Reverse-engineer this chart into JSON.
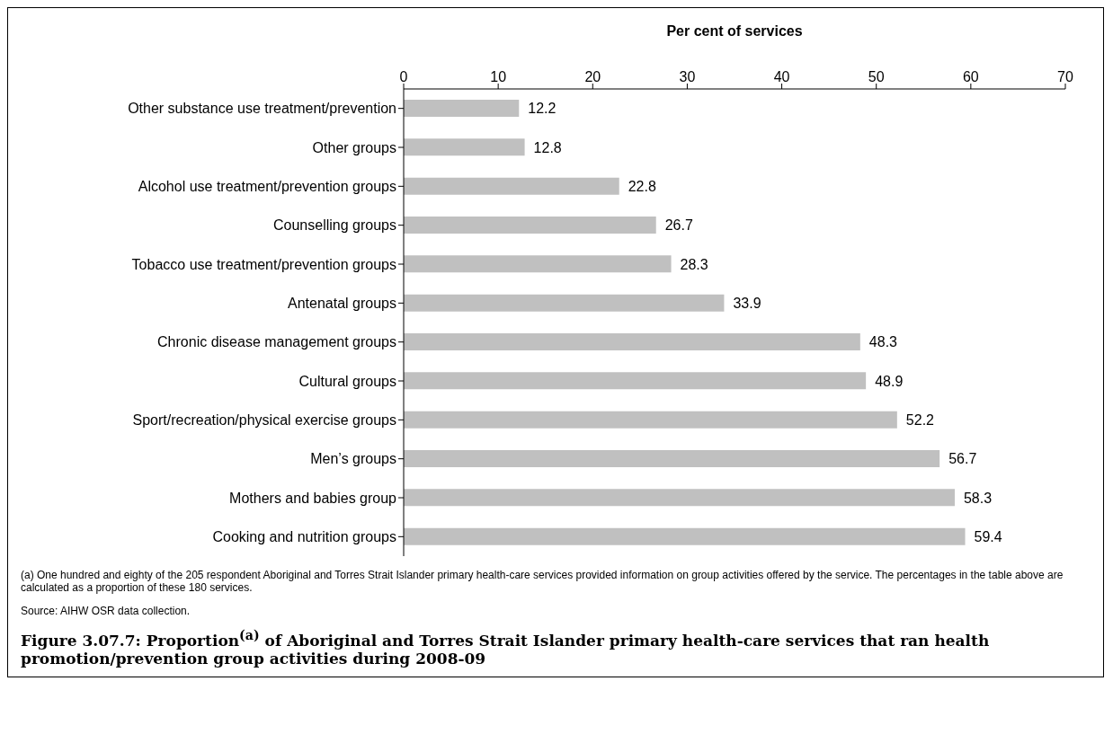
{
  "chart_data": {
    "type": "bar",
    "orientation": "horizontal",
    "title": "Figure 3.07.7: Proportion$^{(a)}$ of Aboriginal and Torres Strait Islander primary health-care services that ran health promotion/prevention group activities during 2008-09",
    "xlabel": "Per cent of services",
    "categories": [
      "Other substance use treatment/prevention",
      "Other groups",
      "Alcohol use treatment/prevention groups",
      "Counselling groups",
      "Tobacco use treatment/prevention groups",
      "Antenatal groups",
      "Chronic disease management groups",
      "Cultural groups",
      "Sport/recreation/physical exercise groups",
      "Men’s groups",
      "Mothers and babies group",
      "Cooking and nutrition groups"
    ],
    "values": [
      12.2,
      12.8,
      22.8,
      26.7,
      28.3,
      33.9,
      48.3,
      48.9,
      52.2,
      56.7,
      58.3,
      59.4
    ],
    "color": "#c0c0c0",
    "xlim": [
      0,
      70
    ],
    "xticks": [
      0,
      10,
      20,
      30,
      40,
      50,
      60,
      70
    ],
    "data_labels": true,
    "annotations": [
      "(a)    One hundred and eighty of the 205 respondent Aboriginal and Torres Strait Islander primary health-care services provided information on group activities offered by the service. The percentages in the table above are calculated as a proportion of these 180 services.",
      "Source: AIHW OSR data collection."
    ]
  }
}
